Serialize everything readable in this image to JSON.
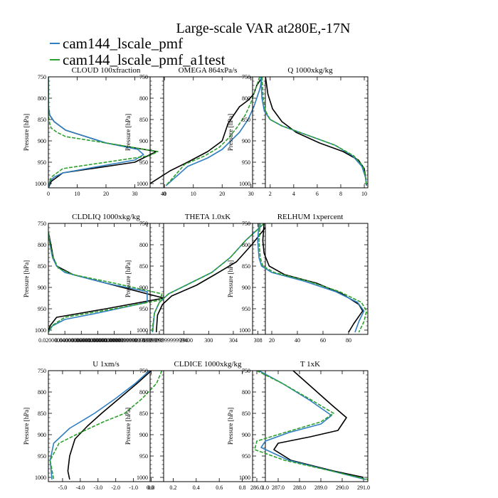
{
  "figure": {
    "title": "Large-scale VAR at280E,-17N",
    "legend": [
      {
        "label": "cam144_lscale_pmf",
        "color": "#2f7fc1"
      },
      {
        "label": "cam144_lscale_pmf_a1test",
        "color": "#2ca02c"
      }
    ]
  },
  "chart_data": [
    {
      "type": "line",
      "title": "CLOUD  100xfraction",
      "ylabel": "Pressure [hPa]",
      "xlim": [
        0,
        40
      ],
      "ylim": [
        1010,
        750
      ],
      "y_inverted": true,
      "grid": false,
      "xticks": [
        0,
        10,
        20,
        30,
        40
      ],
      "xticklabels": [
        "0",
        "10",
        "20",
        "30",
        "40"
      ],
      "yticks": [
        750,
        800,
        850,
        900,
        950,
        1000
      ],
      "yticklabels": [
        "750",
        "800",
        "850",
        "900",
        "950",
        "1000"
      ],
      "series": [
        {
          "color": "#000000",
          "dash": "",
          "x": [
            0,
            0,
            0.5,
            2,
            6,
            20,
            37.5,
            30,
            5,
            1,
            0
          ],
          "y": [
            750,
            820,
            840,
            855,
            875,
            905,
            925,
            950,
            975,
            995,
            1010
          ]
        },
        {
          "color": "#2f7fc1",
          "dash": "",
          "x": [
            0,
            0,
            0.5,
            2,
            6,
            20,
            31,
            33,
            30,
            5,
            2,
            0.5,
            0
          ],
          "y": [
            750,
            820,
            840,
            855,
            875,
            905,
            920,
            932,
            945,
            975,
            985,
            995,
            1010
          ]
        },
        {
          "color": "#2ca02c",
          "dash": "5,2",
          "x": [
            0,
            0,
            0.5,
            1,
            3,
            6,
            20,
            38,
            35,
            5,
            1,
            0.3
          ],
          "y": [
            750,
            840,
            860,
            870,
            880,
            890,
            905,
            925,
            935,
            965,
            985,
            1000
          ]
        }
      ]
    },
    {
      "type": "line",
      "title": "OMEGA  864xPa/s",
      "ylabel": "Pressure [hPa]",
      "xlim": [
        -5,
        35
      ],
      "ylim": [
        1010,
        750
      ],
      "y_inverted": true,
      "grid": false,
      "xticks": [
        0,
        10,
        20,
        30
      ],
      "xticklabels": [
        "0",
        "10",
        "20",
        "30"
      ],
      "yticks": [
        750,
        800,
        850,
        900,
        950,
        1000
      ],
      "yticklabels": [
        "750",
        "800",
        "850",
        "900",
        "950",
        "1000"
      ],
      "series": [
        {
          "color": "#000000",
          "dash": "",
          "x": [
            34,
            32,
            31,
            29,
            26,
            24,
            22,
            20,
            15,
            8,
            2,
            -5
          ],
          "y": [
            750,
            770,
            790,
            805,
            820,
            840,
            860,
            900,
            925,
            950,
            970,
            1000
          ]
        },
        {
          "color": "#2f7fc1",
          "dash": "",
          "x": [
            34,
            33,
            32,
            31,
            29,
            26,
            23,
            20,
            15,
            8,
            0.5
          ],
          "y": [
            750,
            780,
            800,
            820,
            850,
            880,
            900,
            920,
            940,
            960,
            1005
          ]
        },
        {
          "color": "#2ca02c",
          "dash": "5,2",
          "x": [
            33,
            32,
            31,
            30,
            28,
            25,
            22,
            19,
            14,
            7,
            0.5
          ],
          "y": [
            750,
            770,
            790,
            810,
            840,
            870,
            895,
            915,
            935,
            955,
            1005
          ]
        }
      ]
    },
    {
      "type": "line",
      "title": "Q  1000xkg/kg",
      "ylabel": "Pressure [hPa]",
      "xlim": [
        0.5,
        10.3
      ],
      "ylim": [
        1010,
        750
      ],
      "y_inverted": true,
      "grid": false,
      "xticks": [
        2,
        4,
        6,
        8,
        10
      ],
      "xticklabels": [
        "2",
        "4",
        "6",
        "8",
        "10"
      ],
      "yticks": [
        750,
        800,
        850,
        900,
        950,
        1000
      ],
      "yticklabels": [
        "750",
        "800",
        "850",
        "900",
        "950",
        "1000"
      ],
      "series": [
        {
          "color": "#000000",
          "dash": "",
          "x": [
            1.6,
            1.8,
            2.2,
            3.0,
            4.2,
            6.2,
            8.2,
            9.5,
            10.0,
            10.1,
            10.2
          ],
          "y": [
            750,
            790,
            825,
            855,
            880,
            905,
            925,
            945,
            965,
            985,
            1005
          ]
        },
        {
          "color": "#2f7fc1",
          "dash": "",
          "x": [
            1.2,
            1.3,
            1.5,
            2.0,
            3.0,
            5.0,
            7.5,
            9.0,
            9.8,
            10.1,
            10.2
          ],
          "y": [
            750,
            800,
            830,
            850,
            865,
            885,
            910,
            935,
            960,
            985,
            1005
          ]
        },
        {
          "color": "#2ca02c",
          "dash": "5,2",
          "x": [
            1.3,
            1.4,
            1.6,
            2.0,
            3.0,
            5.0,
            7.5,
            9.1,
            9.9,
            10.1,
            10.2
          ],
          "y": [
            750,
            800,
            830,
            850,
            865,
            885,
            910,
            935,
            960,
            985,
            1005
          ]
        }
      ]
    },
    {
      "type": "line",
      "title": "CLDLIQ  1000xkg/kg",
      "ylabel": "Pressure [hPa]",
      "xlim": [
        0,
        0.14
      ],
      "ylim": [
        1010,
        750
      ],
      "y_inverted": true,
      "grid": false,
      "xticks": [
        0.02,
        0.04,
        0.06,
        0.08,
        0.1,
        0.12,
        0.14
      ],
      "xticklabels": [
        "0.02000000000000001",
        "0.04000000000000001",
        "0.06000000000000001",
        "0.08000000000000001",
        "0.09999999999999999",
        "0.12",
        "0.1399999999999999400"
      ],
      "yticks": [
        750,
        800,
        850,
        900,
        950,
        1000
      ],
      "yticklabels": [
        "750",
        "800",
        "850",
        "900",
        "950",
        "1000"
      ],
      "series": [
        {
          "color": "#000000",
          "dash": "",
          "x": [
            0,
            0.003,
            0.006,
            0.01,
            0.03,
            0.14,
            0.07,
            0.01,
            0.002,
            0
          ],
          "y": [
            770,
            800,
            830,
            850,
            870,
            925,
            950,
            970,
            990,
            1005
          ]
        },
        {
          "color": "#2f7fc1",
          "dash": "",
          "x": [
            0,
            0.002,
            0.005,
            0.01,
            0.02,
            0.07,
            0.12,
            0.12,
            0.06,
            0.02,
            0.005,
            0
          ],
          "y": [
            770,
            800,
            830,
            850,
            865,
            890,
            910,
            935,
            960,
            975,
            990,
            1005
          ]
        },
        {
          "color": "#2ca02c",
          "dash": "5,2",
          "x": [
            0,
            0.002,
            0.006,
            0.012,
            0.03,
            0.08,
            0.138,
            0.135,
            0.08,
            0.02,
            0.004,
            0
          ],
          "y": [
            770,
            800,
            830,
            855,
            870,
            890,
            915,
            930,
            950,
            970,
            990,
            1005
          ]
        }
      ]
    },
    {
      "type": "line",
      "title": "THETA  1.0xK",
      "ylabel": "Pressure [hPa]",
      "xlim": [
        290.5,
        309.2
      ],
      "ylim": [
        1010,
        750
      ],
      "y_inverted": true,
      "grid": false,
      "xticks": [
        292,
        296,
        300,
        304,
        308
      ],
      "xticklabels": [
        "292",
        "296",
        "300",
        "304",
        "308"
      ],
      "yticks": [
        750,
        800,
        850,
        900,
        950,
        1000
      ],
      "yticklabels": [
        "750",
        "800",
        "850",
        "900",
        "950",
        "1000"
      ],
      "series": [
        {
          "color": "#000000",
          "dash": "",
          "x": [
            309.2,
            307,
            304.5,
            301,
            298,
            294,
            292.5,
            291.7,
            291.5
          ],
          "y": [
            760,
            800,
            840,
            870,
            895,
            920,
            940,
            965,
            1005
          ]
        },
        {
          "color": "#2f7fc1",
          "dash": "",
          "x": [
            309.0,
            306,
            303.5,
            300.5,
            297,
            293.5,
            292,
            291.2,
            290.9
          ],
          "y": [
            750,
            790,
            830,
            865,
            890,
            915,
            935,
            960,
            1005
          ]
        },
        {
          "color": "#2ca02c",
          "dash": "5,2",
          "x": [
            309.0,
            306,
            303.5,
            300.5,
            297,
            293.5,
            292,
            291.2,
            290.8
          ],
          "y": [
            750,
            790,
            830,
            865,
            890,
            915,
            935,
            960,
            1005
          ]
        }
      ]
    },
    {
      "type": "line",
      "title": "RELHUM  1xpercent",
      "ylabel": "Pressure [hPa]",
      "xlim": [
        5,
        95
      ],
      "ylim": [
        1010,
        750
      ],
      "y_inverted": true,
      "grid": false,
      "xticks": [
        20,
        40,
        60,
        80
      ],
      "xticklabels": [
        "20",
        "40",
        "60",
        "80"
      ],
      "yticks": [
        750,
        800,
        850,
        900,
        950,
        1000
      ],
      "yticklabels": [
        "750",
        "800",
        "850",
        "900",
        "950",
        "1000"
      ],
      "series": [
        {
          "color": "#000000",
          "dash": "",
          "x": [
            14,
            13,
            14,
            18,
            30,
            55,
            75,
            88,
            91,
            84,
            80
          ],
          "y": [
            750,
            790,
            820,
            850,
            870,
            890,
            915,
            940,
            955,
            985,
            1005
          ]
        },
        {
          "color": "#2f7fc1",
          "dash": "",
          "x": [
            10,
            9,
            10,
            12,
            20,
            45,
            70,
            87,
            92,
            88,
            85
          ],
          "y": [
            750,
            790,
            830,
            850,
            865,
            885,
            910,
            935,
            955,
            980,
            1005
          ]
        },
        {
          "color": "#2ca02c",
          "dash": "5,2",
          "x": [
            11,
            10,
            11,
            13,
            22,
            48,
            73,
            90,
            94,
            92,
            88
          ],
          "y": [
            750,
            790,
            830,
            850,
            865,
            885,
            910,
            935,
            955,
            980,
            1005
          ]
        }
      ]
    },
    {
      "type": "line",
      "title": "U  1xm/s",
      "ylabel": "Pressure [hPa]",
      "xlim": [
        -5.8,
        0.7
      ],
      "ylim": [
        1010,
        750
      ],
      "y_inverted": true,
      "grid": false,
      "xticks": [
        -5.0,
        -4.0,
        -3.0,
        -2.0,
        -1.0,
        0.0
      ],
      "xticklabels": [
        "-5.0",
        "-4.0",
        "-3.0",
        "-2.0",
        "-1.0",
        "0.0"
      ],
      "yticks": [
        750,
        800,
        850,
        900,
        950,
        1000
      ],
      "yticklabels": [
        "750",
        "800",
        "850",
        "900",
        "950",
        "1000"
      ],
      "series": [
        {
          "color": "#000000",
          "dash": "",
          "x": [
            0,
            -0.8,
            -1.8,
            -2.8,
            -3.6,
            -4.3,
            -4.6,
            -4.7,
            -4.6
          ],
          "y": [
            750,
            780,
            815,
            850,
            880,
            910,
            950,
            985,
            1005
          ]
        },
        {
          "color": "#2f7fc1",
          "dash": "",
          "x": [
            -0.1,
            -0.9,
            -2.0,
            -3.2,
            -4.6,
            -5.5,
            -5.7,
            -5.6
          ],
          "y": [
            750,
            780,
            815,
            850,
            885,
            920,
            960,
            1005
          ]
        },
        {
          "color": "#2ca02c",
          "dash": "5,2",
          "x": [
            0.6,
            0.3,
            -0.5,
            -1.5,
            -2.7,
            -4.0,
            -5.2,
            -5.7,
            -5.5
          ],
          "y": [
            750,
            780,
            815,
            850,
            870,
            895,
            920,
            960,
            1005
          ]
        }
      ]
    },
    {
      "type": "line",
      "title": "CLDICE  1000xkg/kg",
      "ylabel": "Pressure [hPa]",
      "xlim": [
        0,
        1
      ],
      "ylim": [
        1010,
        750
      ],
      "y_inverted": true,
      "grid": false,
      "xticks": [
        0,
        0.2,
        0.4,
        0.6,
        0.8,
        1.0
      ],
      "xticklabels": [
        "0.0",
        "0.2",
        "0.4",
        "0.6",
        "0.8",
        "1.0"
      ],
      "yticks": [
        750,
        800,
        850,
        900,
        950,
        1000
      ],
      "yticklabels": [
        "750",
        "800",
        "850",
        "900",
        "950",
        "1000"
      ],
      "series": []
    },
    {
      "type": "line",
      "title": "T  1xK",
      "ylabel": "Pressure [hPa]",
      "xlim": [
        285.8,
        291.2
      ],
      "ylim": [
        1010,
        750
      ],
      "y_inverted": true,
      "grid": false,
      "xticks": [
        286.0,
        287.0,
        288.0,
        289.0,
        290.0,
        291.0
      ],
      "xticklabels": [
        "286.0",
        "287.0",
        "288.0",
        "289.0",
        "290.0",
        "291.0"
      ],
      "yticks": [
        750,
        800,
        850,
        900,
        950,
        1000
      ],
      "yticklabels": [
        "750",
        "800",
        "850",
        "900",
        "950",
        "1000"
      ],
      "series": [
        {
          "color": "#000000",
          "dash": "",
          "x": [
            287.7,
            288.6,
            289.5,
            290.2,
            289.8,
            288.5,
            287.0,
            286.8,
            287.6,
            289.6,
            291.0
          ],
          "y": [
            750,
            790,
            830,
            860,
            890,
            905,
            920,
            935,
            960,
            985,
            1000
          ]
        },
        {
          "color": "#2f7fc1",
          "dash": "",
          "x": [
            286.1,
            287.2,
            288.5,
            289.5,
            289.0,
            287.5,
            286.4,
            286.2,
            287.5,
            289.5,
            291.1
          ],
          "y": [
            750,
            780,
            820,
            855,
            875,
            895,
            915,
            930,
            960,
            985,
            1005
          ]
        },
        {
          "color": "#2ca02c",
          "dash": "5,2",
          "x": [
            286.0,
            287.2,
            288.6,
            289.6,
            289.0,
            287.3,
            286.0,
            285.9,
            287.3,
            289.5,
            291.2
          ],
          "y": [
            750,
            780,
            820,
            850,
            870,
            895,
            915,
            935,
            960,
            985,
            1005
          ]
        }
      ]
    }
  ]
}
